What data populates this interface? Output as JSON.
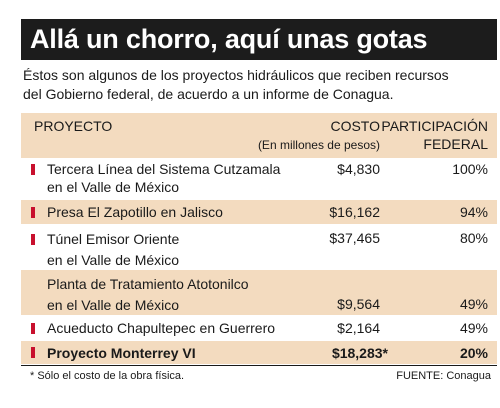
{
  "title": "Allá un chorro, aquí unas gotas",
  "intro": {
    "line1": "Éstos son algunos de los proyectos hidráulicos que reciben recursos",
    "line2": "del Gobierno federal, de acuerdo a un informe de Conagua."
  },
  "table": {
    "headers": {
      "proyecto": "PROYECTO",
      "costo": "COSTO",
      "unit": "(En millones de pesos)",
      "participacion_1": "PARTICIPACIÓN",
      "participacion_2": "FEDERAL"
    },
    "rows": [
      {
        "name_1": "Tercera Línea del Sistema Cutzamala",
        "name_2": "en el Valle de México",
        "cost": "$4,830",
        "pct": "100%"
      },
      {
        "name_1": "Presa El Zapotillo en Jalisco",
        "name_2": "",
        "cost": "$16,162",
        "pct": "94%"
      },
      {
        "name_1": "Túnel Emisor Oriente",
        "name_2": "en el Valle de México",
        "cost": "$37,465",
        "pct": "80%"
      },
      {
        "name_1": "Planta de Tratamiento Atotonilco",
        "name_2": "en el Valle de México",
        "cost": "$9,564",
        "pct": "49%"
      },
      {
        "name_1": "Acueducto Chapultepec en Guerrero",
        "name_2": "",
        "cost": "$2,164",
        "pct": "49%"
      },
      {
        "name_1": "Proyecto Monterrey VI",
        "name_2": "",
        "cost": "$18,283*",
        "pct": "20%"
      }
    ]
  },
  "footer": {
    "note": "* Sólo el costo de la obra física.",
    "source_label": "FUENTE:",
    "source_value": "Conagua"
  },
  "colors": {
    "title_bg": "#1c1c1c",
    "shade": "#f3dbbf",
    "marker": "#c8102e"
  }
}
